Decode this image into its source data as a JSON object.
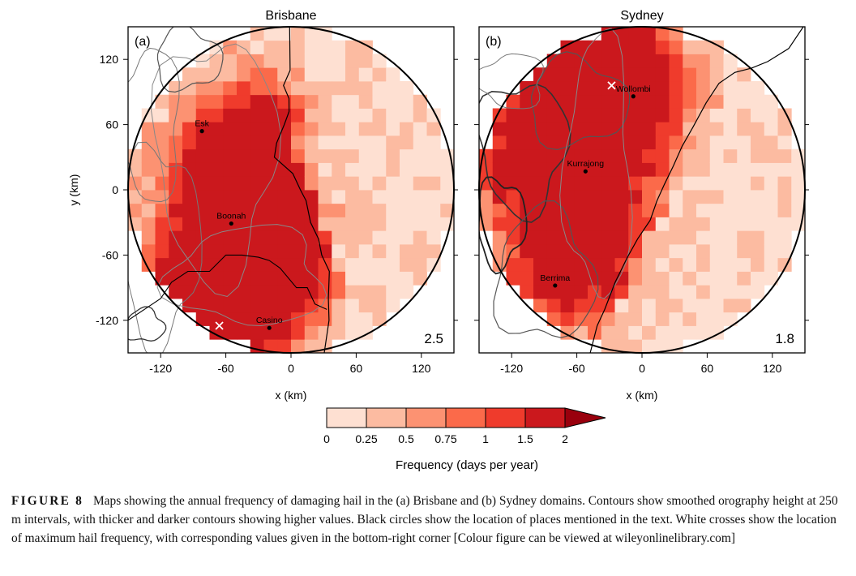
{
  "figure": {
    "panels": [
      {
        "title": "Brisbane",
        "panel_label": "(a)",
        "max_value": "2.5",
        "places": [
          {
            "name": "Esk",
            "x": -82,
            "y": 54
          },
          {
            "name": "Boonah",
            "x": -55,
            "y": -31
          },
          {
            "name": "Casino",
            "x": -20,
            "y": -127
          }
        ],
        "max_cross": {
          "x": -66,
          "y": -125
        },
        "core": [
          [
            -30,
            -5
          ],
          [
            -45,
            -25
          ],
          [
            -45,
            -95
          ],
          [
            -60,
            -110
          ],
          [
            -15,
            -60
          ],
          [
            -20,
            50
          ],
          [
            -60,
            20
          ],
          [
            -80,
            -100
          ]
        ],
        "coast_upper": [
          [
            -3,
            150
          ],
          [
            -2,
            110
          ],
          [
            -8,
            96
          ],
          [
            -3,
            84
          ],
          [
            0,
            72
          ],
          [
            -5,
            60
          ],
          [
            -12,
            43
          ],
          [
            -15,
            30
          ],
          [
            2,
            15
          ],
          [
            10,
            0
          ],
          [
            15,
            -10
          ],
          [
            20,
            -30
          ],
          [
            24,
            -45
          ],
          [
            30,
            -60
          ],
          [
            35,
            -75
          ],
          [
            34,
            -100
          ],
          [
            36,
            -120
          ],
          [
            32,
            -150
          ]
        ],
        "border": [
          [
            -150,
            -120
          ],
          [
            -135,
            -110
          ],
          [
            -120,
            -100
          ],
          [
            -110,
            -85
          ],
          [
            -95,
            -75
          ],
          [
            -75,
            -75
          ],
          [
            -60,
            -60
          ],
          [
            -45,
            -60
          ],
          [
            -30,
            -62
          ],
          [
            -20,
            -65
          ],
          [
            -10,
            -72
          ],
          [
            5,
            -90
          ],
          [
            15,
            -90
          ],
          [
            22,
            -105
          ],
          [
            33,
            -110
          ]
        ]
      },
      {
        "title": "Sydney",
        "panel_label": "(b)",
        "max_value": "1.8",
        "places": [
          {
            "name": "Wollombi",
            "x": -8,
            "y": 86
          },
          {
            "name": "Kurrajong",
            "x": -52,
            "y": 17
          },
          {
            "name": "Berrima",
            "x": -80,
            "y": -88
          }
        ],
        "max_cross": {
          "x": -28,
          "y": 96
        },
        "core": [
          [
            -50,
            110
          ],
          [
            -15,
            110
          ],
          [
            -30,
            70
          ],
          [
            -70,
            60
          ],
          [
            -60,
            20
          ],
          [
            -100,
            30
          ],
          [
            -75,
            -80
          ],
          [
            -40,
            -50
          ]
        ],
        "coast_upper": [
          [
            150,
            150
          ],
          [
            135,
            130
          ],
          [
            115,
            118
          ],
          [
            100,
            112
          ],
          [
            85,
            108
          ],
          [
            70,
            98
          ],
          [
            60,
            80
          ],
          [
            48,
            58
          ],
          [
            38,
            40
          ],
          [
            28,
            22
          ],
          [
            20,
            5
          ],
          [
            14,
            -10
          ],
          [
            6,
            -28
          ],
          [
            -5,
            -45
          ],
          [
            -15,
            -62
          ],
          [
            -25,
            -85
          ],
          [
            -35,
            -110
          ],
          [
            -40,
            -125
          ],
          [
            -46,
            -150
          ]
        ],
        "border": []
      }
    ],
    "x_axis_label": "x (km)",
    "y_axis_label": "y (km)",
    "tick_labels": [
      "-120",
      "-60",
      "0",
      "60",
      "120"
    ],
    "colorbar": {
      "title": "Frequency (days per year)",
      "levels": [
        "0",
        "0.25",
        "0.5",
        "0.75",
        "1",
        "1.5",
        "2"
      ],
      "colors": [
        "#fee0d2",
        "#fcbba1",
        "#fc9272",
        "#fb6a4a",
        "#ef3b2c",
        "#cb181d",
        "#99000d"
      ]
    }
  },
  "caption": {
    "label": "FIGURE 8",
    "text": "Maps showing the annual frequency of damaging hail in the (a) Brisbane and (b) Sydney domains. Contours show smoothed orography height at 250 m intervals, with thicker and darker contours showing higher values. Black circles show the location of places mentioned in the text. White crosses show the location of maximum hail frequency, with corresponding values given in the bottom-right corner [Colour figure can be viewed at wileyonlinelibrary.com]"
  }
}
